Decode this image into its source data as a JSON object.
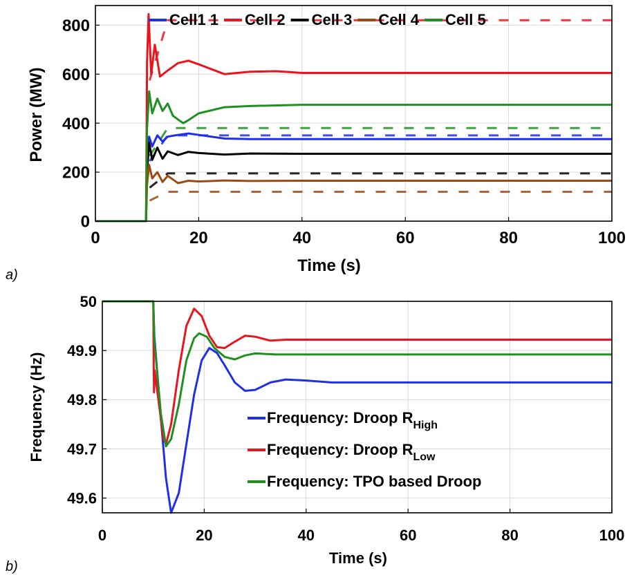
{
  "chart_data": [
    {
      "panel_label": "a)",
      "type": "line",
      "xlabel": "Time (s)",
      "ylabel": "Power (MW)",
      "xlim": [
        0,
        100
      ],
      "ylim": [
        0,
        880
      ],
      "xticks": [
        0,
        20,
        40,
        60,
        80,
        100
      ],
      "yticks": [
        0,
        200,
        400,
        600,
        800
      ],
      "grid": true,
      "legend_position": "top",
      "series": [
        {
          "name": "Cell1 1",
          "color": "#1f2ee8",
          "final_value": 335,
          "dashed_value": 350,
          "points": [
            [
              0,
              0
            ],
            [
              9.8,
              0
            ],
            [
              10,
              250
            ],
            [
              10.4,
              345
            ],
            [
              11,
              305
            ],
            [
              12,
              350
            ],
            [
              13,
              325
            ],
            [
              14,
              345
            ],
            [
              16,
              352
            ],
            [
              18,
              358
            ],
            [
              20,
              352
            ],
            [
              25,
              337
            ],
            [
              30,
              335
            ],
            [
              40,
              335
            ],
            [
              100,
              335
            ]
          ]
        },
        {
          "name": "Cell 2",
          "color": "#e8141e",
          "final_value": 605,
          "dashed_value": 820,
          "points": [
            [
              0,
              0
            ],
            [
              9.8,
              0
            ],
            [
              10,
              650
            ],
            [
              10.3,
              845
            ],
            [
              10.8,
              600
            ],
            [
              11.5,
              720
            ],
            [
              12.5,
              590
            ],
            [
              14,
              615
            ],
            [
              16,
              645
            ],
            [
              18,
              655
            ],
            [
              20,
              640
            ],
            [
              25,
              600
            ],
            [
              30,
              610
            ],
            [
              35,
              612
            ],
            [
              40,
              605
            ],
            [
              100,
              605
            ]
          ]
        },
        {
          "name": "Cell 3",
          "color": "#000000",
          "final_value": 275,
          "dashed_value": 195,
          "points": [
            [
              0,
              0
            ],
            [
              9.8,
              0
            ],
            [
              10,
              200
            ],
            [
              10.4,
              320
            ],
            [
              11,
              250
            ],
            [
              12,
              300
            ],
            [
              13,
              255
            ],
            [
              14,
              285
            ],
            [
              16,
              270
            ],
            [
              18,
              283
            ],
            [
              20,
              278
            ],
            [
              25,
              272
            ],
            [
              30,
              276
            ],
            [
              40,
              275
            ],
            [
              100,
              275
            ]
          ]
        },
        {
          "name": "Cell 4",
          "color": "#9c4a14",
          "final_value": 165,
          "dashed_value": 120,
          "points": [
            [
              0,
              0
            ],
            [
              9.8,
              0
            ],
            [
              10,
              150
            ],
            [
              10.4,
              230
            ],
            [
              11,
              175
            ],
            [
              12,
              200
            ],
            [
              13,
              160
            ],
            [
              14,
              185
            ],
            [
              16,
              155
            ],
            [
              18,
              165
            ],
            [
              20,
              162
            ],
            [
              25,
              166
            ],
            [
              30,
              164
            ],
            [
              40,
              165
            ],
            [
              100,
              165
            ]
          ]
        },
        {
          "name": "Cell 5",
          "color": "#1f8f1f",
          "final_value": 475,
          "dashed_value": 380,
          "points": [
            [
              0,
              0
            ],
            [
              9.8,
              0
            ],
            [
              10,
              380
            ],
            [
              10.4,
              530
            ],
            [
              11,
              440
            ],
            [
              12,
              500
            ],
            [
              13,
              450
            ],
            [
              14,
              480
            ],
            [
              15,
              430
            ],
            [
              16,
              415
            ],
            [
              17,
              400
            ],
            [
              18,
              412
            ],
            [
              20,
              440
            ],
            [
              25,
              465
            ],
            [
              30,
              470
            ],
            [
              40,
              475
            ],
            [
              100,
              475
            ]
          ]
        }
      ]
    },
    {
      "panel_label": "b)",
      "type": "line",
      "xlabel": "Time (s)",
      "ylabel": "Frequency (Hz)",
      "xlim": [
        0,
        100
      ],
      "ylim": [
        49.57,
        50
      ],
      "xticks": [
        0,
        20,
        40,
        60,
        80,
        100
      ],
      "yticks": [
        49.6,
        49.7,
        49.8,
        49.9,
        50
      ],
      "ytick_labels": [
        "49.6",
        "49.7",
        "49.8",
        "49.9",
        "50"
      ],
      "grid": true,
      "legend_position": "bottom-right",
      "series": [
        {
          "name_main": "Frequency: Droop R",
          "name_sub": "High",
          "color": "#1f2ee8",
          "points": [
            [
              0,
              50
            ],
            [
              10,
              50
            ],
            [
              10.2,
              49.93
            ],
            [
              11.5,
              49.76
            ],
            [
              12.5,
              49.64
            ],
            [
              13.5,
              49.57
            ],
            [
              15,
              49.61
            ],
            [
              16.5,
              49.71
            ],
            [
              18,
              49.81
            ],
            [
              19.5,
              49.88
            ],
            [
              21,
              49.905
            ],
            [
              22.5,
              49.895
            ],
            [
              24,
              49.87
            ],
            [
              26,
              49.835
            ],
            [
              28,
              49.818
            ],
            [
              30,
              49.82
            ],
            [
              33,
              49.835
            ],
            [
              36,
              49.841
            ],
            [
              40,
              49.839
            ],
            [
              45,
              49.835
            ],
            [
              100,
              49.835
            ]
          ]
        },
        {
          "name_main": "Frequency: Droop R",
          "name_sub": "Low",
          "color": "#e8141e",
          "points": [
            [
              0,
              50
            ],
            [
              10,
              50
            ],
            [
              10.1,
              49.86
            ],
            [
              10.15,
              49.815
            ],
            [
              10.25,
              49.86
            ],
            [
              11,
              49.8
            ],
            [
              12,
              49.72
            ],
            [
              12.5,
              49.71
            ],
            [
              13.5,
              49.75
            ],
            [
              15,
              49.86
            ],
            [
              16.5,
              49.95
            ],
            [
              18,
              49.985
            ],
            [
              19.5,
              49.97
            ],
            [
              21,
              49.93
            ],
            [
              22.5,
              49.907
            ],
            [
              24,
              49.905
            ],
            [
              26,
              49.918
            ],
            [
              28,
              49.93
            ],
            [
              30,
              49.928
            ],
            [
              33,
              49.92
            ],
            [
              36,
              49.922
            ],
            [
              40,
              49.922
            ],
            [
              100,
              49.922
            ]
          ]
        },
        {
          "name_main": "Frequency: TPO based Droop",
          "name_sub": "",
          "color": "#1f8f1f",
          "points": [
            [
              0,
              50
            ],
            [
              10,
              50
            ],
            [
              10.2,
              49.92
            ],
            [
              11.5,
              49.77
            ],
            [
              12.5,
              49.705
            ],
            [
              13.5,
              49.72
            ],
            [
              15,
              49.79
            ],
            [
              16.5,
              49.88
            ],
            [
              18,
              49.925
            ],
            [
              19,
              49.935
            ],
            [
              20.5,
              49.928
            ],
            [
              22,
              49.905
            ],
            [
              24,
              49.887
            ],
            [
              26,
              49.882
            ],
            [
              28,
              49.89
            ],
            [
              30,
              49.894
            ],
            [
              34,
              49.892
            ],
            [
              40,
              49.892
            ],
            [
              100,
              49.892
            ]
          ]
        }
      ]
    }
  ]
}
